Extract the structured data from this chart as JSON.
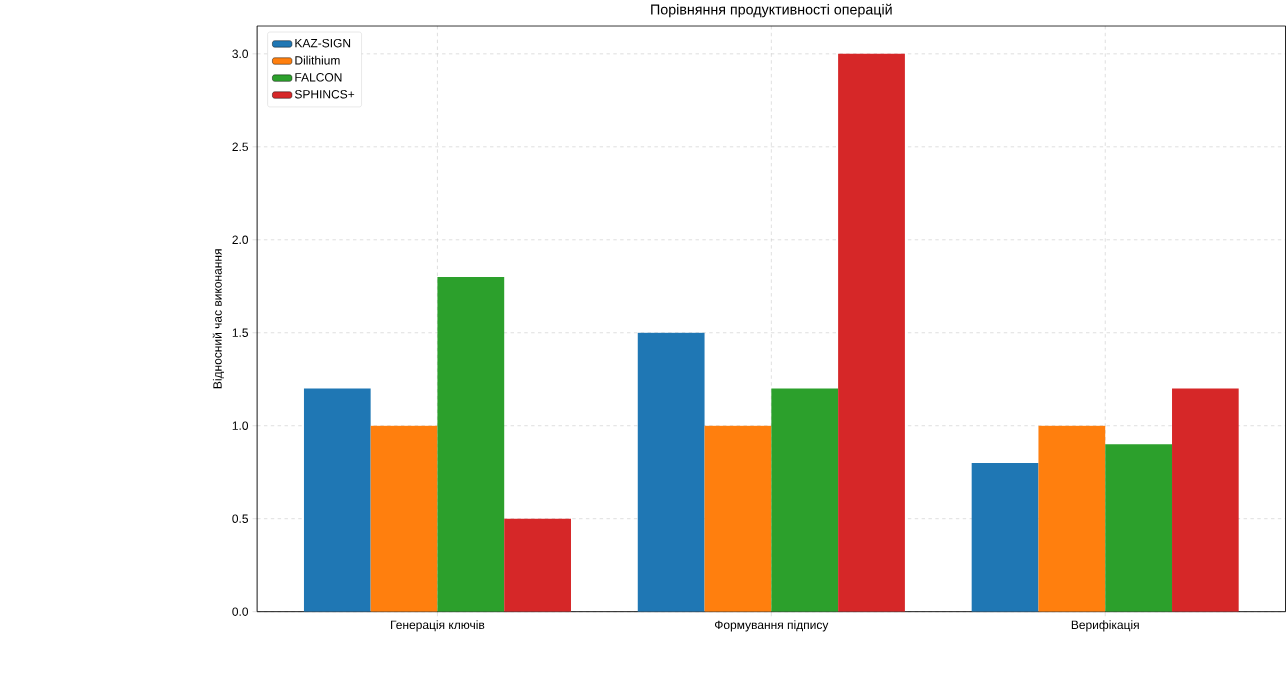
{
  "chart_data": {
    "type": "bar",
    "title": "Порівняння продуктивності операцій",
    "ylabel": "Відносний час виконання",
    "categories": [
      "Генерація ключів",
      "Формування підпису",
      "Верифікація"
    ],
    "series": [
      {
        "name": "KAZ-SIGN",
        "color": "#1f77b4",
        "values": [
          1.2,
          1.5,
          0.8
        ]
      },
      {
        "name": "Dilithium",
        "color": "#ff7f0e",
        "values": [
          1.0,
          1.0,
          1.0
        ]
      },
      {
        "name": "FALCON",
        "color": "#2ca02c",
        "values": [
          1.8,
          1.2,
          0.9
        ]
      },
      {
        "name": "SPHINCS+",
        "color": "#d62728",
        "values": [
          0.5,
          3.0,
          1.2
        ]
      }
    ],
    "ylim": [
      0,
      3.15
    ],
    "yticks": [
      {
        "value": 0,
        "label": "0.0"
      },
      {
        "value": 0.5,
        "label": "0.5"
      },
      {
        "value": 1,
        "label": "1.0"
      },
      {
        "value": 1.5,
        "label": "1.5"
      },
      {
        "value": 2,
        "label": "2.0"
      },
      {
        "value": 2.5,
        "label": "2.5"
      },
      {
        "value": 3,
        "label": "3.0"
      }
    ],
    "grid": true,
    "legend": "top left"
  }
}
